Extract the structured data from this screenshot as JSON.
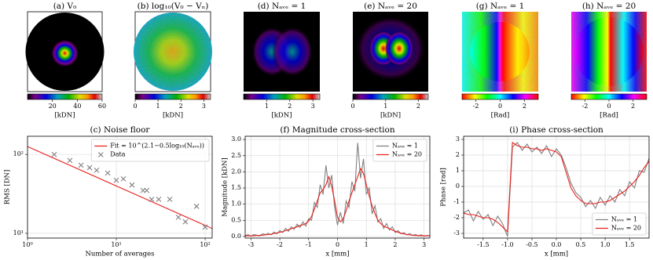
{
  "chart_data": [
    {
      "type": "image",
      "title": "(a) V₀",
      "colormap": "spectral",
      "colorbar": {
        "lim": [
          0,
          60
        ],
        "ticks": [
          20,
          40,
          60
        ],
        "label": "[kDN]"
      }
    },
    {
      "type": "image",
      "title": "(b) log₁₀(V₀ − Vₙ)",
      "colormap": "spectral",
      "colorbar": {
        "lim": [
          0,
          3.3
        ],
        "ticks": [
          0,
          1,
          2,
          3
        ],
        "label": "[kDN]"
      }
    },
    {
      "type": "image",
      "title": "(d) Nₐᵥₑ = 1",
      "colormap": "spectral",
      "colorbar": {
        "lim": [
          0,
          3.3
        ],
        "ticks": [
          1,
          2,
          3
        ],
        "label": "[kDN]"
      }
    },
    {
      "type": "image",
      "title": "(e) Nₐᵥₑ = 20",
      "colormap": "spectral",
      "colorbar": {
        "lim": [
          0,
          2.3
        ],
        "ticks": [
          0,
          1,
          2
        ],
        "label": "[kDN]"
      }
    },
    {
      "type": "image",
      "title": "(g) Nₐᵥₑ = 1",
      "colormap": "hsv",
      "colorbar": {
        "lim": [
          -3.14,
          3.14
        ],
        "ticks": [
          -2,
          0,
          2
        ],
        "label": "[Rad]"
      }
    },
    {
      "type": "image",
      "title": "(h) Nₐᵥₑ = 20",
      "colormap": "hsv",
      "colorbar": {
        "lim": [
          -3.14,
          3.14
        ],
        "ticks": [
          -2,
          0,
          2
        ],
        "label": "[Rad]"
      }
    },
    {
      "type": "line",
      "title": "(c) Noise floor",
      "xlabel": "Number of averages",
      "ylabel": "RMS [DN]",
      "xlog": true,
      "ylog": true,
      "grid": true,
      "legend": "upper right",
      "xlim": [
        1,
        120
      ],
      "ylim": [
        8.7,
        170
      ],
      "xticks": [
        {
          "value": 1,
          "label": "10⁰"
        },
        {
          "value": 10,
          "label": "10¹"
        },
        {
          "value": 100,
          "label": "10²"
        }
      ],
      "yticks": [
        {
          "value": 10,
          "label": "10¹"
        },
        {
          "value": 100,
          "label": "10²"
        }
      ],
      "series": [
        {
          "name": "Fit = 10^(2.1−0.5log₁₀(Nₐᵥₑ))",
          "color": "#e8201c",
          "x": [
            1,
            120
          ],
          "values": [
            126,
            11.5
          ]
        },
        {
          "name": "Data",
          "color": "#808080",
          "marker": "x",
          "x": [
            2,
            3,
            4,
            5,
            6,
            8,
            10,
            12,
            15,
            20,
            22,
            25,
            30,
            40,
            50,
            60,
            80,
            100
          ],
          "values": [
            100,
            84,
            73,
            68,
            63,
            58,
            47,
            49,
            41,
            35,
            35,
            27,
            27,
            27,
            16,
            14,
            22,
            12
          ]
        }
      ]
    },
    {
      "type": "line",
      "title": "(f) Magnitude cross-section",
      "xlabel": "x [mm]",
      "ylabel": "Magnitude [kDN]",
      "grid": true,
      "legend": "upper right",
      "xlim": [
        -3.2,
        3.2
      ],
      "ylim": [
        -0.05,
        3.1
      ],
      "xticks": [
        -3,
        -2,
        -1,
        0,
        1,
        2,
        3
      ],
      "yticks": [
        {
          "value": 0,
          "label": "0.0"
        },
        0.5,
        {
          "value": 1,
          "label": "1.0"
        },
        1.5,
        {
          "value": 2,
          "label": "2.0"
        },
        2.5,
        {
          "value": 3,
          "label": "3.0"
        }
      ],
      "x": [
        -3.2,
        -3.1,
        -3.0,
        -2.9,
        -2.8,
        -2.7,
        -2.6,
        -2.5,
        -2.4,
        -2.3,
        -2.2,
        -2.1,
        -2.0,
        -1.9,
        -1.8,
        -1.7,
        -1.6,
        -1.5,
        -1.4,
        -1.3,
        -1.2,
        -1.1,
        -1.0,
        -0.9,
        -0.8,
        -0.7,
        -0.6,
        -0.5,
        -0.4,
        -0.3,
        -0.2,
        -0.1,
        0.0,
        0.1,
        0.2,
        0.3,
        0.4,
        0.5,
        0.6,
        0.7,
        0.8,
        0.9,
        1.0,
        1.1,
        1.2,
        1.3,
        1.4,
        1.5,
        1.6,
        1.7,
        1.8,
        1.9,
        2.0,
        2.1,
        2.2,
        2.3,
        2.4,
        2.5,
        2.6,
        2.7,
        2.8,
        2.9,
        3.0,
        3.1,
        3.2
      ],
      "series": [
        {
          "name": "Nₐᵥₑ = 1",
          "color": "#808080",
          "values": [
            0.03,
            0.05,
            0.01,
            0.06,
            0.04,
            0.02,
            0.08,
            0.06,
            0.1,
            0.05,
            0.14,
            0.08,
            0.18,
            0.12,
            0.25,
            0.16,
            0.3,
            0.22,
            0.38,
            0.28,
            0.45,
            0.32,
            0.55,
            0.5,
            1.05,
            0.9,
            1.6,
            1.3,
            2.2,
            1.5,
            1.9,
            0.9,
            0.35,
            0.75,
            0.4,
            1.1,
            0.9,
            1.7,
            1.4,
            2.9,
            1.8,
            2.4,
            1.3,
            1.5,
            0.7,
            0.95,
            0.45,
            0.55,
            0.25,
            0.4,
            0.2,
            0.3,
            0.12,
            0.18,
            0.08,
            0.12,
            0.05,
            0.09,
            0.03,
            0.06,
            0.02,
            0.05,
            0.01,
            0.03,
            0.02
          ]
        },
        {
          "name": "Nₐᵥₑ = 20",
          "color": "#e8201c",
          "values": [
            0.02,
            0.02,
            0.02,
            0.02,
            0.03,
            0.03,
            0.04,
            0.05,
            0.06,
            0.07,
            0.09,
            0.11,
            0.13,
            0.15,
            0.18,
            0.21,
            0.24,
            0.27,
            0.3,
            0.34,
            0.36,
            0.4,
            0.48,
            0.62,
            0.85,
            1.1,
            1.35,
            1.45,
            1.6,
            1.85,
            1.55,
            1.1,
            0.6,
            0.45,
            0.55,
            0.8,
            1.1,
            1.35,
            1.6,
            1.85,
            2.1,
            1.95,
            1.6,
            1.25,
            0.95,
            0.7,
            0.5,
            0.4,
            0.32,
            0.28,
            0.24,
            0.2,
            0.16,
            0.13,
            0.1,
            0.08,
            0.06,
            0.05,
            0.04,
            0.03,
            0.03,
            0.02,
            0.02,
            0.02,
            0.02
          ]
        }
      ]
    },
    {
      "type": "line",
      "title": "(i) Phase cross-section",
      "xlabel": "x [mm]",
      "ylabel": "Phase [rad]",
      "grid": true,
      "legend": "lower right",
      "xlim": [
        -1.9,
        1.9
      ],
      "ylim": [
        -3.3,
        3.2
      ],
      "xticks": [
        -1.5,
        {
          "value": -1,
          "label": "-1.0"
        },
        -0.5,
        {
          "value": 0,
          "label": "0.0"
        },
        0.5,
        {
          "value": 1,
          "label": "1.0"
        },
        1.5
      ],
      "yticks": [
        -3,
        -2,
        -1,
        0,
        1,
        2,
        3
      ],
      "x": [
        -1.9,
        -1.8,
        -1.7,
        -1.6,
        -1.5,
        -1.4,
        -1.3,
        -1.2,
        -1.1,
        -1.0,
        -0.9,
        -0.8,
        -0.7,
        -0.6,
        -0.5,
        -0.4,
        -0.3,
        -0.2,
        -0.1,
        0.0,
        0.1,
        0.2,
        0.3,
        0.4,
        0.5,
        0.6,
        0.7,
        0.8,
        0.9,
        1.0,
        1.1,
        1.2,
        1.3,
        1.4,
        1.5,
        1.6,
        1.7,
        1.8,
        1.9
      ],
      "series": [
        {
          "name": "Nₐᵥₑ = 1",
          "color": "#808080",
          "values": [
            -1.7,
            -1.5,
            -2.2,
            -1.6,
            -2.1,
            -1.8,
            -2.5,
            -1.9,
            -2.4,
            -3.2,
            2.5,
            2.8,
            2.3,
            2.7,
            2.2,
            2.5,
            2.1,
            2.6,
            1.9,
            2.4,
            2.0,
            1.2,
            0.2,
            -0.4,
            -0.7,
            -1.3,
            -0.9,
            -1.4,
            -0.7,
            -1.2,
            -0.6,
            -1.0,
            -0.2,
            -0.6,
            0.3,
            -0.1,
            1.0,
            0.9,
            1.8
          ]
        },
        {
          "name": "Nₐᵥₑ = 20",
          "color": "#e8201c",
          "values": [
            -1.7,
            -1.8,
            -1.8,
            -1.9,
            -2.0,
            -2.0,
            -2.1,
            -2.3,
            -2.6,
            -2.9,
            2.8,
            2.6,
            2.5,
            2.5,
            2.4,
            2.4,
            2.3,
            2.4,
            2.3,
            2.2,
            1.9,
            0.9,
            -0.1,
            -0.6,
            -0.9,
            -1.1,
            -1.1,
            -1.1,
            -1.0,
            -1.0,
            -0.9,
            -0.7,
            -0.5,
            -0.3,
            0.0,
            0.3,
            0.7,
            1.2,
            1.6
          ]
        }
      ]
    }
  ]
}
